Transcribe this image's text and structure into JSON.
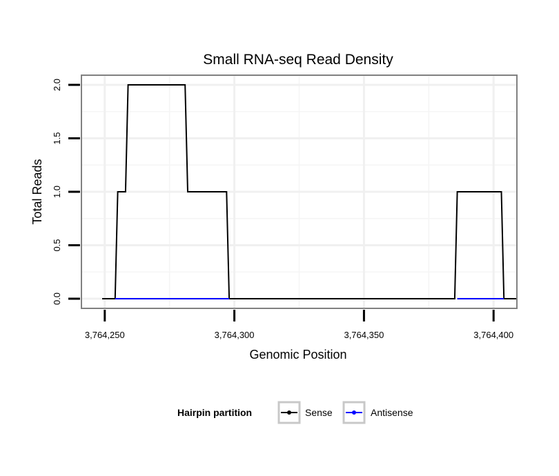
{
  "chart_data": {
    "type": "line",
    "title": "Small RNA-seq Read Density",
    "xlabel": "Genomic Position",
    "ylabel": "Total Reads",
    "xlim": [
      3764241,
      3764409
    ],
    "ylim": [
      -0.09,
      2.09
    ],
    "x_ticks": [
      3764250,
      3764300,
      3764350,
      3764400
    ],
    "x_tick_labels": [
      "3,764,250",
      "3,764,300",
      "3,764,350",
      "3,764,400"
    ],
    "y_ticks": [
      0,
      0.5,
      1,
      1.5,
      2
    ],
    "y_tick_labels": [
      "0.0",
      "0.5",
      "1.0",
      "1.5",
      "2.0"
    ],
    "grid": true,
    "legend": {
      "title": "Hairpin partition",
      "position": "bottom",
      "entries": [
        "Sense",
        "Antisense"
      ]
    },
    "series": [
      {
        "name": "Sense",
        "color": "#000000",
        "points": [
          [
            3764249,
            0
          ],
          [
            3764254,
            0
          ],
          [
            3764255,
            1
          ],
          [
            3764258,
            1
          ],
          [
            3764259,
            2
          ],
          [
            3764281,
            2
          ],
          [
            3764282,
            1
          ],
          [
            3764297,
            1
          ],
          [
            3764298,
            0
          ],
          [
            3764385,
            0
          ],
          [
            3764386,
            1
          ],
          [
            3764403,
            1
          ],
          [
            3764404,
            0
          ],
          [
            3764409,
            0
          ]
        ]
      },
      {
        "name": "Antisense",
        "color": "#0000ff",
        "points": [
          [
            3764254,
            0
          ],
          [
            3764298,
            0
          ]
        ],
        "points_2": [
          [
            3764386,
            0
          ],
          [
            3764404,
            0
          ]
        ]
      }
    ]
  }
}
